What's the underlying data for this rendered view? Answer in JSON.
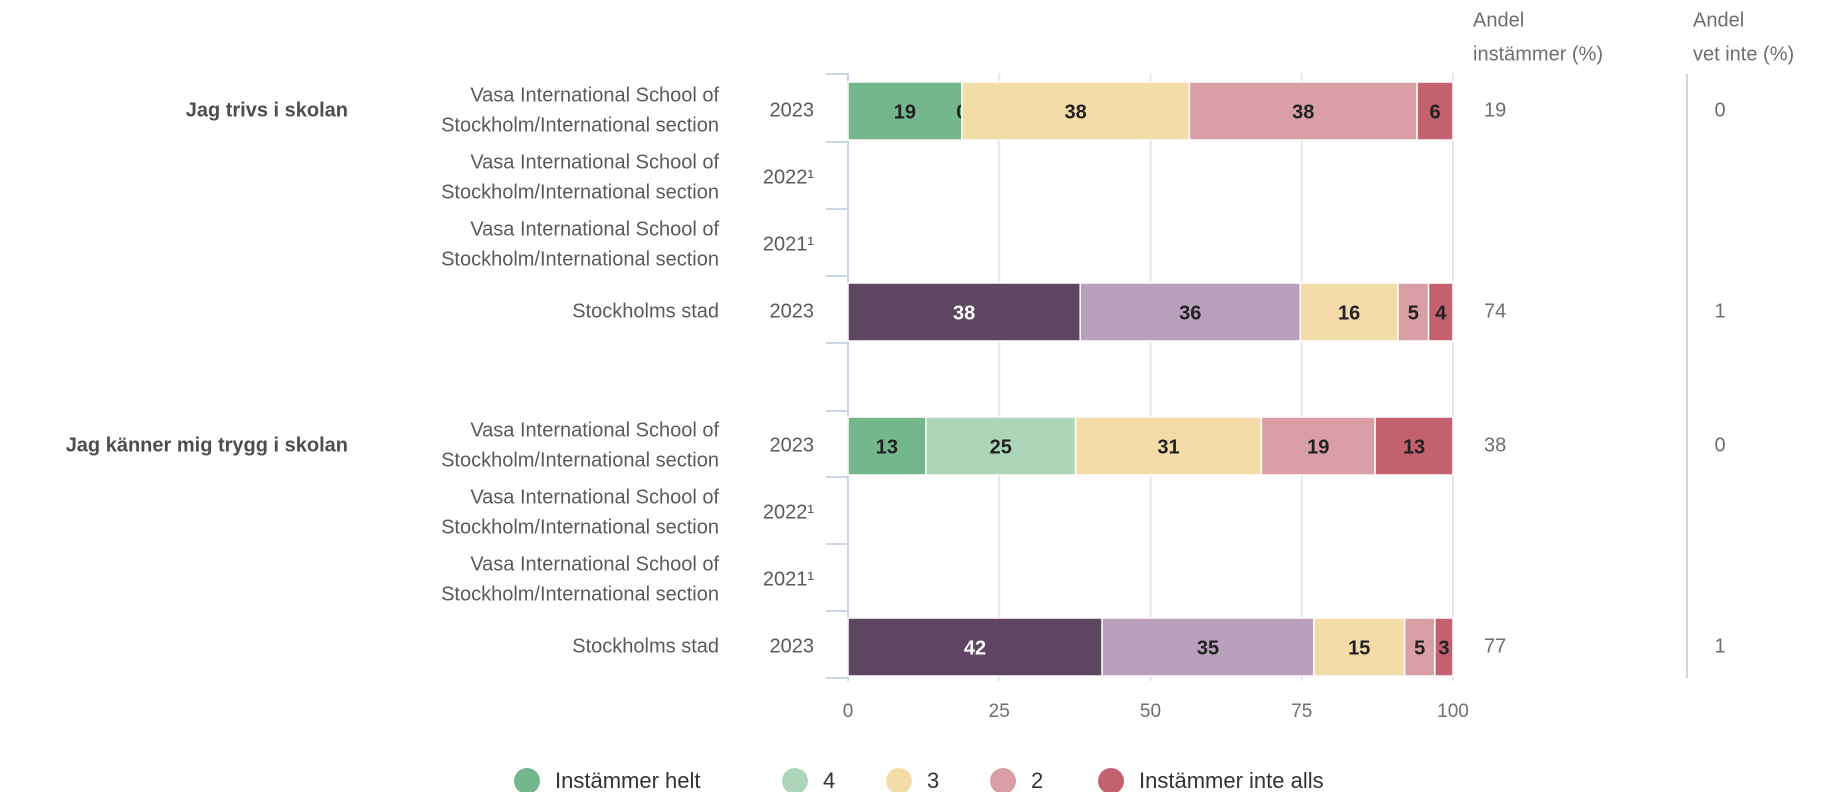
{
  "colors": {
    "instammer_helt": "#75b78c",
    "4": "#acd5b9",
    "3": "#f3dca7",
    "2": "#d99ea6",
    "instammer_inte_alls": "#c4616f",
    "stockholm_5": "#5e4561",
    "stockholm_4": "#b9a1bd"
  },
  "chart_data": {
    "type": "bar",
    "orientation": "horizontal",
    "stacked": true,
    "xlim": [
      0,
      100
    ],
    "x_ticks": [
      "0",
      "25",
      "50",
      "75",
      "100"
    ],
    "grid": true,
    "column_headers": {
      "andel_instammer": [
        "Andel",
        "instämmer (%)"
      ],
      "andel_vet_inte": [
        "Andel",
        "vet inte (%)"
      ]
    },
    "legend": {
      "placement": "bottom",
      "entries": [
        "Instämmer helt",
        "4",
        "3",
        "2",
        "Instämmer inte alls"
      ]
    },
    "groups": [
      {
        "question": "Jag trivs i skolan",
        "rows": [
          {
            "entity": [
              "Vasa International School of",
              "Stockholm/International section"
            ],
            "year": "2023",
            "palette": "school",
            "values": [
              19,
              0,
              38,
              38,
              6
            ],
            "andel_instammer": "19",
            "andel_vet_inte": "0"
          },
          {
            "entity": [
              "Vasa International School of",
              "Stockholm/International section"
            ],
            "year": "2022¹",
            "palette": "school",
            "values": null,
            "andel_instammer": "",
            "andel_vet_inte": ""
          },
          {
            "entity": [
              "Vasa International School of",
              "Stockholm/International section"
            ],
            "year": "2021¹",
            "palette": "school",
            "values": null,
            "andel_instammer": "",
            "andel_vet_inte": ""
          },
          {
            "entity": [
              "Stockholms stad"
            ],
            "year": "2023",
            "palette": "city",
            "values": [
              38,
              36,
              16,
              5,
              4
            ],
            "andel_instammer": "74",
            "andel_vet_inte": "1"
          }
        ]
      },
      {
        "question": "Jag känner mig trygg i skolan",
        "rows": [
          {
            "entity": [
              "Vasa International School of",
              "Stockholm/International section"
            ],
            "year": "2023",
            "palette": "school",
            "values": [
              13,
              25,
              31,
              19,
              13
            ],
            "andel_instammer": "38",
            "andel_vet_inte": "0"
          },
          {
            "entity": [
              "Vasa International School of",
              "Stockholm/International section"
            ],
            "year": "2022¹",
            "palette": "school",
            "values": null,
            "andel_instammer": "",
            "andel_vet_inte": ""
          },
          {
            "entity": [
              "Vasa International School of",
              "Stockholm/International section"
            ],
            "year": "2021¹",
            "palette": "school",
            "values": null,
            "andel_instammer": "",
            "andel_vet_inte": ""
          },
          {
            "entity": [
              "Stockholms stad"
            ],
            "year": "2023",
            "palette": "city",
            "values": [
              42,
              35,
              15,
              5,
              3
            ],
            "andel_instammer": "77",
            "andel_vet_inte": "1"
          }
        ]
      }
    ]
  }
}
